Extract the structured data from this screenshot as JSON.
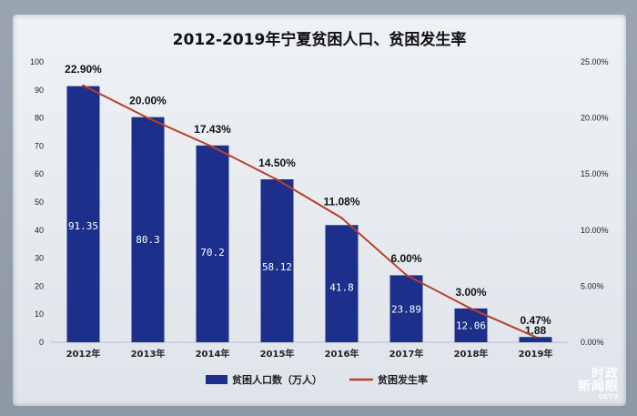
{
  "chart_data": {
    "type": "bar+line",
    "title": "2012-2019年宁夏贫困人口、贫困发生率",
    "categories": [
      "2012年",
      "2013年",
      "2014年",
      "2015年",
      "2016年",
      "2017年",
      "2018年",
      "2019年"
    ],
    "series": [
      {
        "name": "贫困人口数（万人）",
        "type": "bar",
        "axis": "left",
        "color": "#1c2f8a",
        "values": [
          91.35,
          80.3,
          70.2,
          58.12,
          41.8,
          23.89,
          12.06,
          1.88
        ],
        "labels": [
          "91.35",
          "80.3",
          "70.2",
          "58.12",
          "41.8",
          "23.89",
          "12.06",
          "1.88"
        ]
      },
      {
        "name": "贫困发生率",
        "type": "line",
        "axis": "right",
        "color": "#b9402a",
        "values": [
          22.9,
          20.0,
          17.43,
          14.5,
          11.08,
          6.0,
          3.0,
          0.47
        ],
        "labels": [
          "22.90%",
          "20.00%",
          "17.43%",
          "14.50%",
          "11.08%",
          "6.00%",
          "3.00%",
          "0.47%"
        ]
      }
    ],
    "left_axis": {
      "ylim": [
        0,
        100
      ],
      "ticks": [
        "0",
        "10",
        "20",
        "30",
        "40",
        "50",
        "60",
        "70",
        "80",
        "90",
        "100"
      ]
    },
    "right_axis": {
      "ylim": [
        0,
        25
      ],
      "ticks": [
        "0.00%",
        "5.00%",
        "10.00%",
        "15.00%",
        "20.00%",
        "25.00%"
      ]
    },
    "grid": false,
    "legend": "bottom-center"
  },
  "watermark": {
    "line1": "时政",
    "line2": "新闻眼",
    "small": "CCTV"
  }
}
